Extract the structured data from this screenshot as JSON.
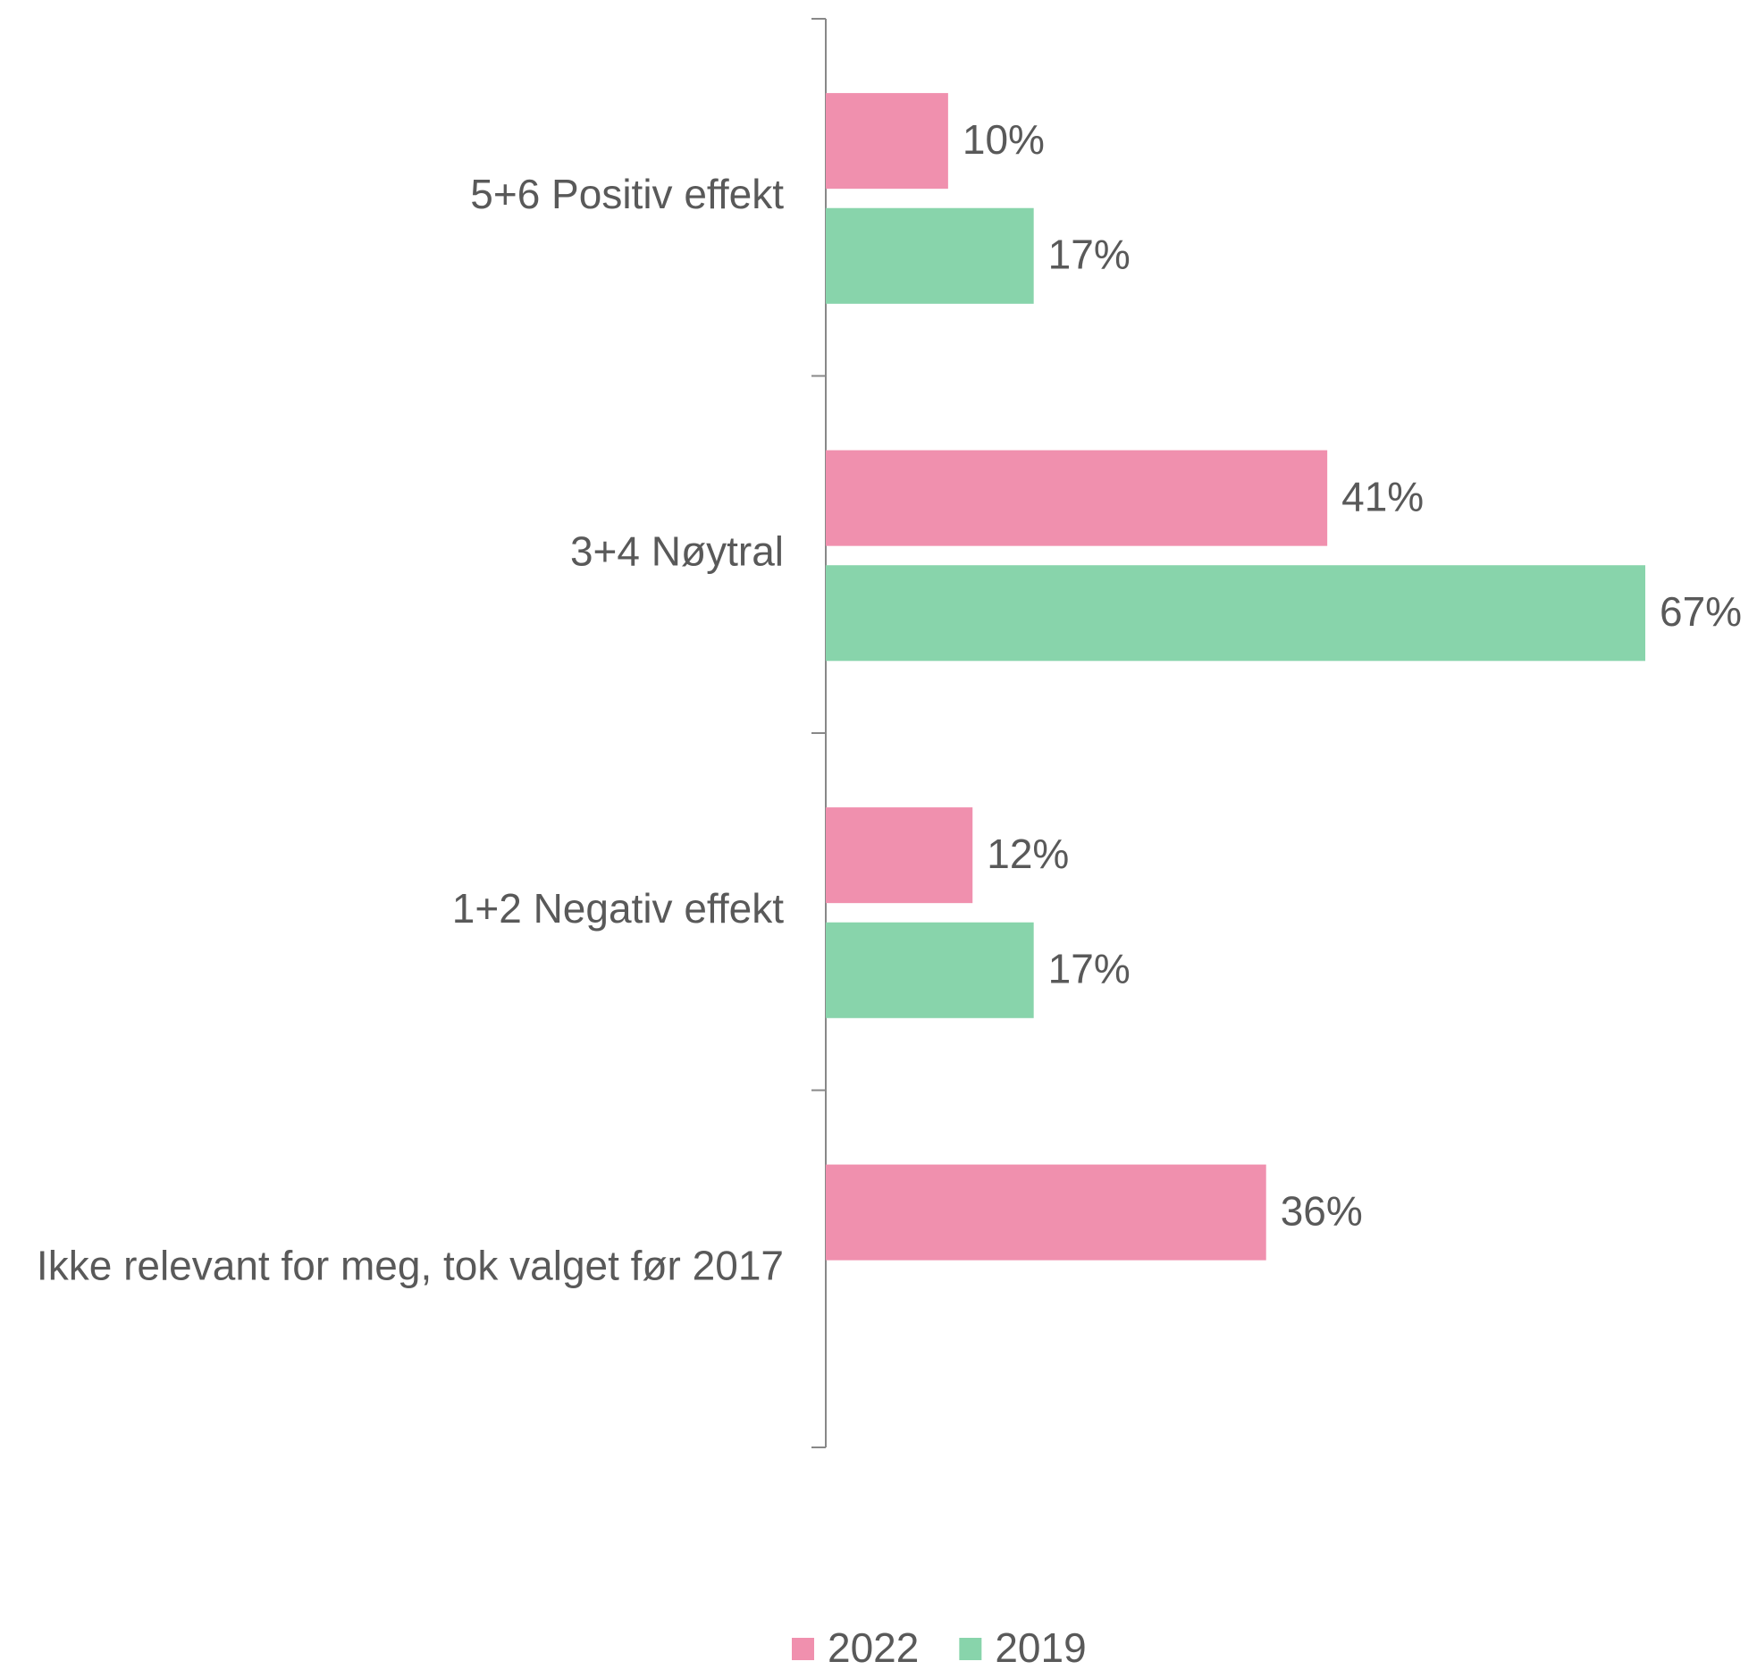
{
  "chart_data": {
    "type": "bar",
    "orientation": "horizontal",
    "categories": [
      "5+6 Positiv effekt",
      "3+4 Nøytral",
      "1+2 Negativ effekt",
      "Ikke relevant for meg, tok valget før 2017"
    ],
    "series": [
      {
        "name": "2022",
        "color": "#f090ae",
        "values": [
          10,
          41,
          12,
          36
        ],
        "value_labels": [
          "10%",
          "41%",
          "12%",
          "36%"
        ]
      },
      {
        "name": "2019",
        "color": "#88d4ab",
        "values": [
          17,
          67,
          17,
          null
        ],
        "value_labels": [
          "17%",
          "67%",
          "17%",
          null
        ]
      }
    ],
    "legend": "bottom"
  }
}
